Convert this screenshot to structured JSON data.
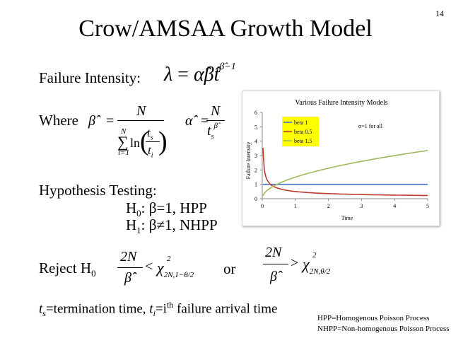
{
  "slide": {
    "title": "Crow/AMSAA Growth Model",
    "page_number": "14"
  },
  "failure_intensity": {
    "label": "Failure Intensity:",
    "lambda": "λ",
    "equals": "=",
    "alpha_hat": "α̂",
    "beta_hat": "β̂",
    "t": "t",
    "exponent": "β̂−1"
  },
  "where": {
    "label": "Where",
    "beta_hat": "β̂",
    "equals": "=",
    "numerator": "N",
    "sum_top": "N",
    "sum_symbol": "∑",
    "sum_bottom": "i=1",
    "ln": "ln",
    "t_s": "t",
    "t_s_sub": "s",
    "t_i": "t",
    "t_i_sub": "i",
    "alpha_hat": "α̂",
    "alpha_num": "N",
    "alpha_den": "t",
    "alpha_den_sub": "s",
    "alpha_den_sup": "β̂"
  },
  "hypothesis": {
    "label": "Hypothesis Testing:",
    "h0": "H",
    "h0_sub": "0",
    "h0_text": ": β=1, HPP",
    "h1": "H",
    "h1_sub": "1",
    "h1_text": ": β≠1, NHPP"
  },
  "reject": {
    "label": "Reject H",
    "label_sub": "0",
    "num1": "2N",
    "den1": "β̂",
    "op1": "<",
    "chi1": "χ",
    "chi1_sup": "2",
    "chi1_sub": "2N,1−θ/2",
    "or": "or",
    "num2": "2N",
    "den2": "β̂",
    "op2": ">",
    "chi2": "χ",
    "chi2_sup": "2",
    "chi2_sub": "2N,θ/2"
  },
  "definition": {
    "ts": "t",
    "ts_sub": "s",
    "part1": "=termination time, ",
    "ti": "t",
    "ti_sub": "i",
    "part2": "=i",
    "th": "th",
    "part3": " failure arrival time"
  },
  "footnotes": {
    "hpp": "HPP=Homogenous Poisson Process",
    "nhpp": "NHPP=Non-homogenous Poisson Process"
  },
  "chart_data": {
    "type": "line",
    "title": "Various Failure Intensity Models",
    "xlabel": "Time",
    "ylabel": "Failure Intensity",
    "xlim": [
      0,
      5
    ],
    "ylim": [
      0,
      6
    ],
    "xticks": [
      "0",
      "1",
      "2",
      "3",
      "4",
      "5"
    ],
    "yticks": [
      "0",
      "1",
      "2",
      "3",
      "4",
      "5",
      "6"
    ],
    "annotation": "α=1 for all",
    "legend_position": "top-left",
    "grid": false,
    "series": [
      {
        "name": "beta 1",
        "color": "#4472c4",
        "alpha": 1,
        "beta": 1,
        "x": [
          0.05,
          0.5,
          1,
          2,
          3,
          4,
          5
        ],
        "y": [
          1,
          1,
          1,
          1,
          1,
          1,
          1
        ]
      },
      {
        "name": "beta 0.5",
        "color": "#c0392b",
        "alpha": 1,
        "beta": 0.5,
        "x": [
          0.05,
          0.1,
          0.2,
          0.5,
          1,
          2,
          3,
          4,
          5
        ],
        "y": [
          2.24,
          1.58,
          1.12,
          0.71,
          0.5,
          0.35,
          0.29,
          0.25,
          0.22
        ]
      },
      {
        "name": "beta 1.5",
        "color": "#9bbb59",
        "alpha": 1,
        "beta": 1.5,
        "x": [
          0.05,
          0.1,
          0.2,
          0.5,
          1,
          2,
          3,
          4,
          5
        ],
        "y": [
          0.34,
          0.47,
          0.67,
          1.06,
          1.5,
          2.12,
          2.6,
          3.0,
          3.35
        ]
      }
    ]
  }
}
